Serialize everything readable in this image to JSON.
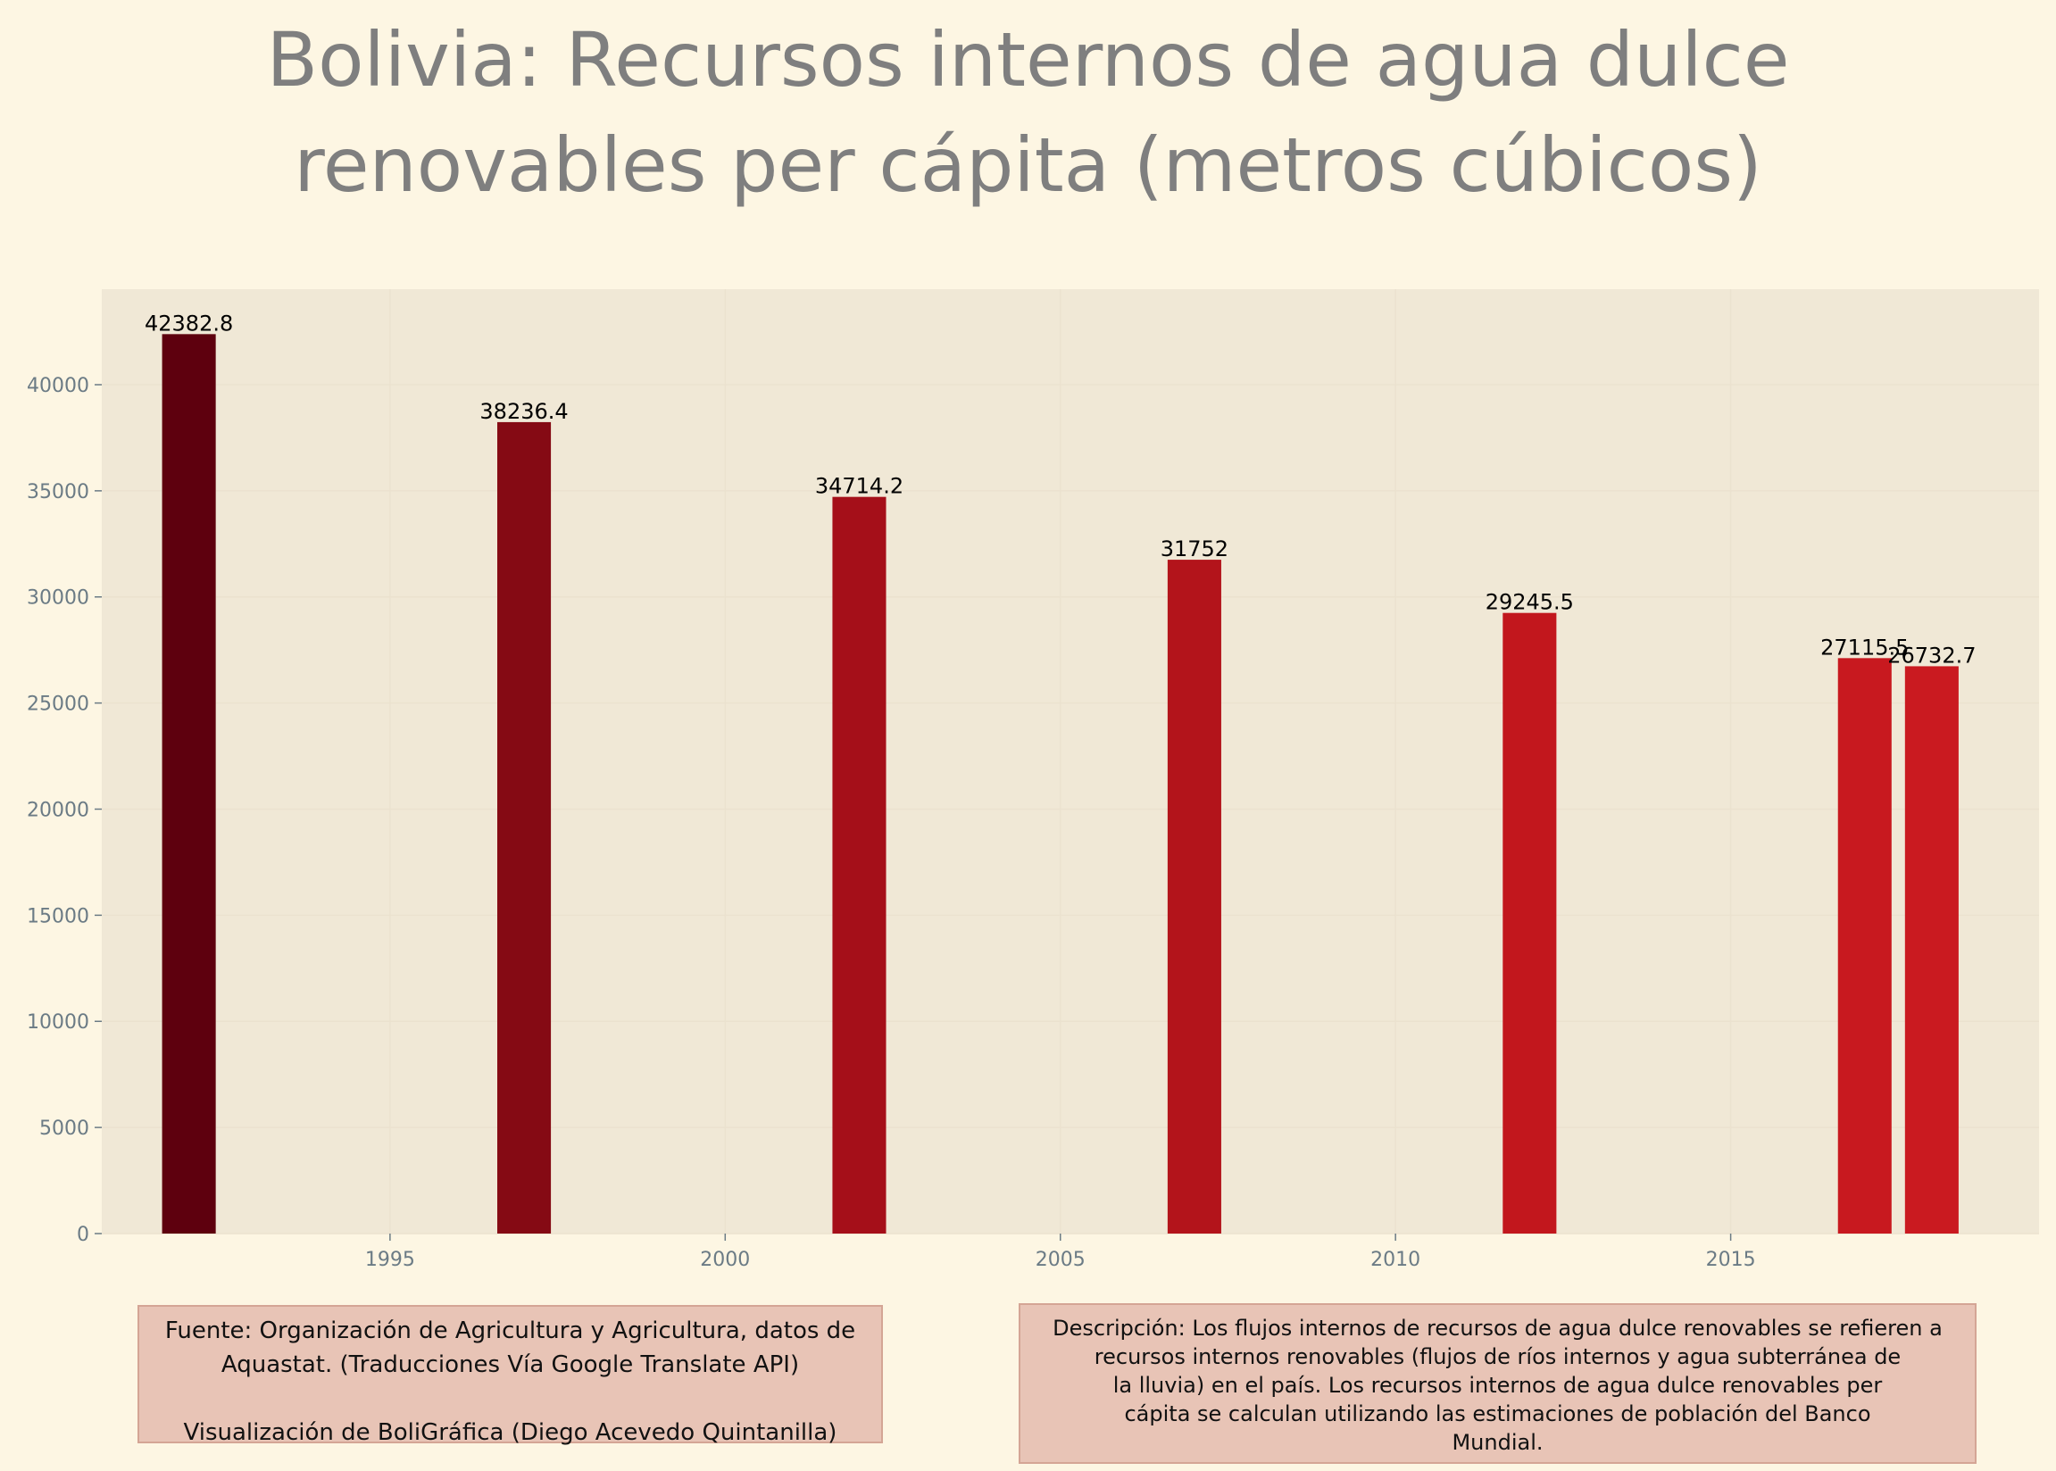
{
  "title_lines": [
    "Bolivia: Recursos internos de agua dulce",
    "renovables per cápita (metros cúbicos)"
  ],
  "footer": {
    "source_lines": [
      "Fuente: Organización de Agricultura y Agricultura, datos de",
      "Aquastat. (Traducciones Vía Google Translate API)"
    ],
    "visualization": "Visualización de BoliGráfica (Diego Acevedo Quintanilla)",
    "description_lines": [
      "Descripción: Los flujos internos de recursos de agua dulce renovables se refieren a",
      "recursos internos renovables (flujos de ríos internos y agua subterránea de",
      "la lluvia) en el país. Los recursos internos de agua dulce renovables per",
      "cápita se calculan utilizando las estimaciones de población del Banco",
      "Mundial."
    ]
  },
  "chart_data": {
    "type": "bar",
    "title": "Bolivia: Recursos internos de agua dulce renovables per cápita (metros cúbicos)",
    "x": [
      1992,
      1997,
      2002,
      2007,
      2012,
      2017,
      2018
    ],
    "values": [
      42382.8,
      38236.4,
      34714.2,
      31752,
      29245.5,
      27115.5,
      26732.7
    ],
    "value_labels": [
      "42382.8",
      "38236.4",
      "34714.2",
      "31752",
      "29245.5",
      "27115.5",
      "26732.7"
    ],
    "bar_colors": [
      "#5e000e",
      "#850a14",
      "#a50f19",
      "#b3141b",
      "#c2171d",
      "#c8191f",
      "#ca1a20"
    ],
    "xlim": [
      1990.7,
      2019.6
    ],
    "ylim": [
      0,
      44500
    ],
    "xticks": [
      1995,
      2000,
      2005,
      2010,
      2015
    ],
    "yticks": [
      0,
      5000,
      10000,
      15000,
      20000,
      25000,
      30000,
      35000,
      40000
    ],
    "xlabel": "",
    "ylabel": "",
    "grid": true,
    "legend": false,
    "plot_background": "#f0e8d6",
    "tick_color": "#6b7b85"
  }
}
